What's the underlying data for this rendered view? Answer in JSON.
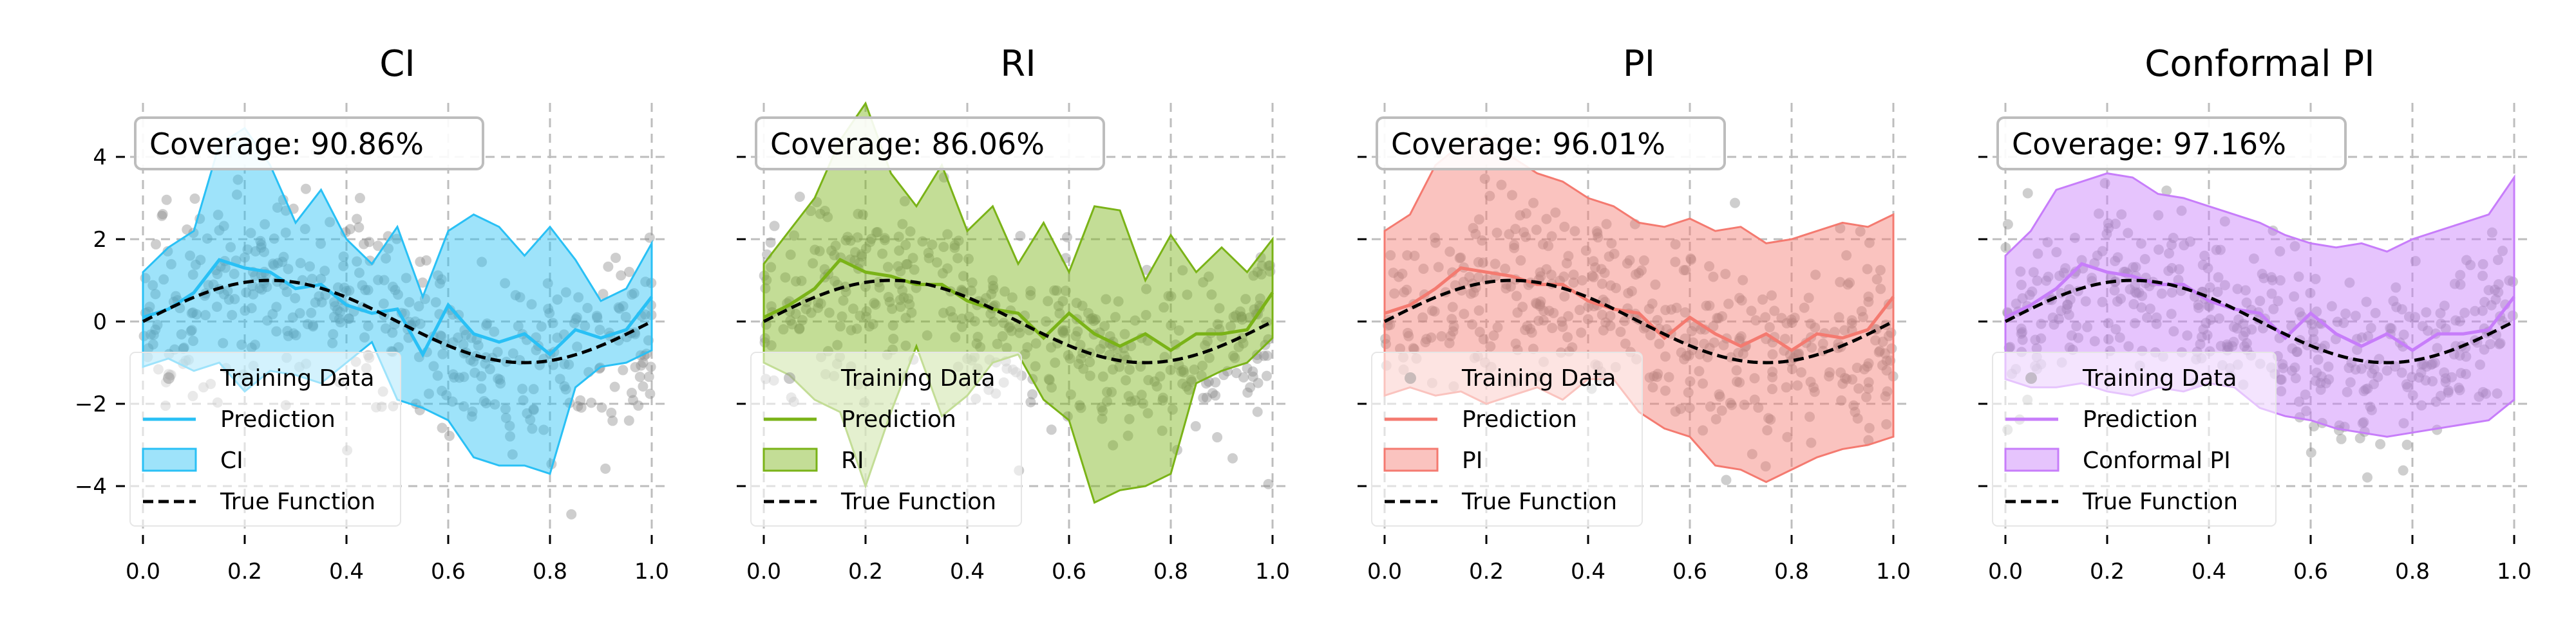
{
  "chart_data": [
    {
      "type": "line",
      "title": "CI",
      "coverage_label": "Coverage: 90.86%",
      "band_color": "#29c0f5",
      "xlim": [
        0,
        1
      ],
      "ylim": [
        -5,
        5
      ],
      "xticks": [
        "0.0",
        "0.2",
        "0.4",
        "0.6",
        "0.8",
        "1.0"
      ],
      "yticks": [
        "4",
        "2",
        "0",
        "−2",
        "−4"
      ],
      "ytick_values": [
        4,
        2,
        0,
        -2,
        -4
      ],
      "xtick_values": [
        0,
        0.2,
        0.4,
        0.6,
        0.8,
        1.0
      ],
      "legend": [
        "Training Data",
        "Prediction",
        "CI",
        "True Function"
      ],
      "band_x": [
        0,
        0.05,
        0.1,
        0.15,
        0.2,
        0.25,
        0.3,
        0.35,
        0.4,
        0.45,
        0.5,
        0.55,
        0.6,
        0.65,
        0.7,
        0.75,
        0.8,
        0.85,
        0.9,
        0.95,
        1.0
      ],
      "band_upper": [
        1.2,
        1.8,
        2.2,
        4.3,
        4.7,
        3.8,
        2.4,
        3.2,
        2.0,
        1.4,
        2.3,
        0.6,
        2.2,
        2.6,
        2.3,
        1.6,
        2.3,
        1.5,
        0.5,
        0.8,
        1.9
      ],
      "band_lower": [
        -1.1,
        -0.9,
        -1.2,
        -1.0,
        -1.7,
        -1.2,
        -1.3,
        -1.5,
        -1.0,
        -0.5,
        -1.9,
        -2.1,
        -2.4,
        -3.3,
        -3.5,
        -3.5,
        -3.7,
        -1.6,
        -1.1,
        -1.0,
        -0.7
      ],
      "prediction": [
        0.1,
        0.3,
        0.7,
        1.5,
        1.3,
        1.2,
        0.8,
        0.9,
        0.4,
        0.2,
        0.3,
        -0.8,
        0.4,
        -0.3,
        -0.5,
        -0.3,
        -0.8,
        -0.2,
        -0.4,
        -0.2,
        0.6
      ]
    },
    {
      "type": "line",
      "title": "RI",
      "coverage_label": "Coverage: 86.06%",
      "band_color": "#7ab317",
      "xlim": [
        0,
        1
      ],
      "ylim": [
        -5,
        5
      ],
      "xticks": [
        "0.0",
        "0.2",
        "0.4",
        "0.6",
        "0.8",
        "1.0"
      ],
      "yticks": [
        "",
        "",
        "",
        "",
        ""
      ],
      "ytick_values": [
        4,
        2,
        0,
        -2,
        -4
      ],
      "xtick_values": [
        0,
        0.2,
        0.4,
        0.6,
        0.8,
        1.0
      ],
      "legend": [
        "Training Data",
        "Prediction",
        "RI",
        "True Function"
      ],
      "band_x": [
        0,
        0.05,
        0.1,
        0.15,
        0.2,
        0.25,
        0.3,
        0.35,
        0.4,
        0.45,
        0.5,
        0.55,
        0.6,
        0.65,
        0.7,
        0.75,
        0.8,
        0.85,
        0.9,
        0.95,
        1.0
      ],
      "band_upper": [
        1.4,
        2.2,
        3.0,
        4.4,
        5.3,
        3.6,
        2.8,
        3.8,
        2.2,
        2.8,
        1.4,
        2.4,
        1.2,
        2.8,
        2.7,
        1.0,
        2.1,
        1.2,
        1.8,
        1.2,
        2.0
      ],
      "band_lower": [
        -1.0,
        -1.3,
        -1.9,
        -2.2,
        -4.0,
        -2.2,
        -0.6,
        -2.3,
        -1.8,
        -1.0,
        -0.8,
        -1.9,
        -2.4,
        -4.4,
        -4.1,
        -4.0,
        -3.7,
        -1.5,
        -1.2,
        -1.0,
        -0.4
      ],
      "prediction": [
        0.1,
        0.4,
        0.8,
        1.5,
        1.2,
        1.1,
        0.9,
        0.9,
        0.5,
        0.3,
        0.2,
        -0.4,
        0.2,
        -0.3,
        -0.6,
        -0.3,
        -0.7,
        -0.3,
        -0.3,
        -0.2,
        0.7
      ]
    },
    {
      "type": "line",
      "title": "PI",
      "coverage_label": "Coverage: 96.01%",
      "band_color": "#f47a70",
      "xlim": [
        0,
        1
      ],
      "ylim": [
        -5,
        5
      ],
      "xticks": [
        "0.0",
        "0.2",
        "0.4",
        "0.6",
        "0.8",
        "1.0"
      ],
      "yticks": [
        "",
        "",
        "",
        "",
        ""
      ],
      "ytick_values": [
        4,
        2,
        0,
        -2,
        -4
      ],
      "xtick_values": [
        0,
        0.2,
        0.4,
        0.6,
        0.8,
        1.0
      ],
      "legend": [
        "Training Data",
        "Prediction",
        "PI",
        "True Function"
      ],
      "band_x": [
        0,
        0.05,
        0.1,
        0.15,
        0.2,
        0.25,
        0.3,
        0.35,
        0.4,
        0.45,
        0.5,
        0.55,
        0.6,
        0.65,
        0.7,
        0.75,
        0.8,
        0.85,
        0.9,
        0.95,
        1.0
      ],
      "band_upper": [
        2.2,
        2.6,
        3.8,
        4.3,
        4.5,
        4.0,
        3.6,
        3.4,
        3.0,
        2.8,
        2.4,
        2.3,
        2.5,
        2.2,
        2.3,
        1.9,
        2.0,
        2.2,
        2.4,
        2.3,
        2.6
      ],
      "band_lower": [
        -1.8,
        -1.6,
        -1.8,
        -1.7,
        -2.0,
        -1.8,
        -1.6,
        -1.9,
        -1.4,
        -1.4,
        -2.2,
        -2.6,
        -2.8,
        -3.5,
        -3.6,
        -3.9,
        -3.6,
        -3.3,
        -3.1,
        -3.0,
        -2.8
      ],
      "prediction": [
        0.2,
        0.4,
        0.8,
        1.3,
        1.2,
        1.1,
        0.9,
        0.9,
        0.5,
        0.3,
        0.2,
        -0.4,
        0.1,
        -0.3,
        -0.6,
        -0.3,
        -0.7,
        -0.3,
        -0.4,
        -0.2,
        0.6
      ]
    },
    {
      "type": "line",
      "title": "Conformal PI",
      "coverage_label": "Coverage: 97.16%",
      "band_color": "#c77dfa",
      "xlim": [
        0,
        1
      ],
      "ylim": [
        -5,
        5
      ],
      "xticks": [
        "0.0",
        "0.2",
        "0.4",
        "0.6",
        "0.8",
        "1.0"
      ],
      "yticks": [
        "",
        "",
        "",
        "",
        ""
      ],
      "ytick_values": [
        4,
        2,
        0,
        -2,
        -4
      ],
      "xtick_values": [
        0,
        0.2,
        0.4,
        0.6,
        0.8,
        1.0
      ],
      "legend": [
        "Training Data",
        "Prediction",
        "Conformal PI",
        "True Function"
      ],
      "band_x": [
        0,
        0.05,
        0.1,
        0.15,
        0.2,
        0.25,
        0.3,
        0.35,
        0.4,
        0.45,
        0.5,
        0.55,
        0.6,
        0.65,
        0.7,
        0.75,
        0.8,
        0.85,
        0.9,
        0.95,
        1.0
      ],
      "band_upper": [
        1.6,
        2.2,
        3.2,
        3.4,
        3.6,
        3.5,
        3.1,
        3.0,
        2.8,
        2.6,
        2.4,
        2.1,
        1.9,
        1.8,
        1.9,
        1.7,
        2.0,
        2.2,
        2.4,
        2.6,
        3.5
      ],
      "band_lower": [
        -1.4,
        -1.6,
        -1.6,
        -1.5,
        -1.7,
        -1.8,
        -1.6,
        -1.7,
        -1.5,
        -1.6,
        -2.1,
        -2.3,
        -2.4,
        -2.6,
        -2.7,
        -2.8,
        -2.7,
        -2.6,
        -2.5,
        -2.4,
        -1.9
      ],
      "prediction": [
        0.1,
        0.4,
        0.8,
        1.4,
        1.2,
        1.1,
        0.9,
        0.9,
        0.5,
        0.3,
        0.2,
        -0.4,
        0.2,
        -0.3,
        -0.6,
        -0.3,
        -0.7,
        -0.3,
        -0.3,
        -0.2,
        0.6
      ]
    }
  ]
}
